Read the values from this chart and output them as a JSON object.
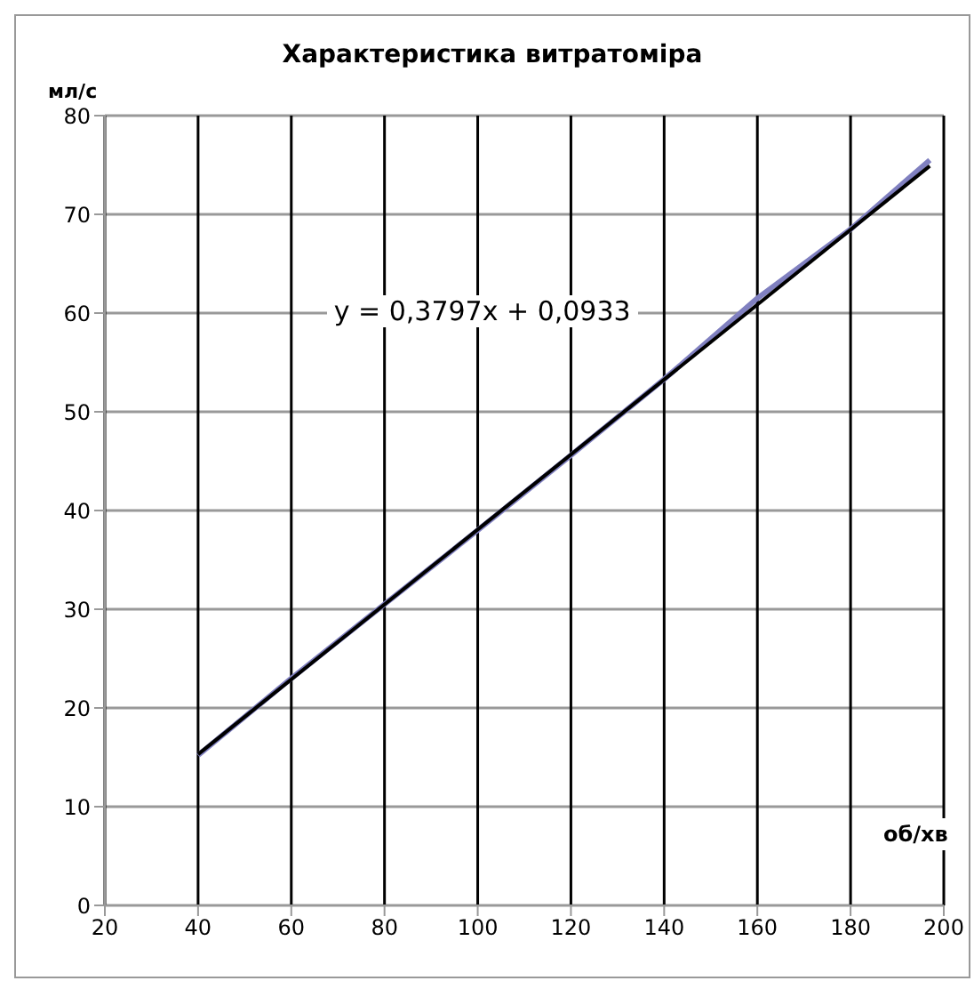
{
  "chart_data": {
    "type": "line",
    "title": "Характеристика витратоміра",
    "xlabel": "об/хв",
    "ylabel": "мл/с",
    "series": [
      {
        "color": "#8080c0",
        "x": [
          40,
          60,
          80,
          100,
          120,
          140,
          160,
          180,
          197
        ],
        "values": [
          15.2,
          23,
          30.5,
          38,
          45.6,
          53.3,
          61.5,
          68.5,
          75.5
        ]
      },
      {
        "type": "line",
        "color": "#000000",
        "x": [
          40,
          197
        ],
        "values": [
          15.3,
          74.9
        ]
      }
    ],
    "annotations": [
      "y = 0,3797x + 0,0933"
    ],
    "xlim": [
      20,
      200
    ],
    "xticks": [
      20,
      40,
      60,
      80,
      100,
      120,
      140,
      160,
      180,
      200
    ],
    "ylim": [
      0,
      80
    ],
    "yticks": [
      0,
      10,
      20,
      30,
      40,
      50,
      60,
      70,
      80
    ],
    "grid": true,
    "marker": "none",
    "line_style": "solid"
  }
}
